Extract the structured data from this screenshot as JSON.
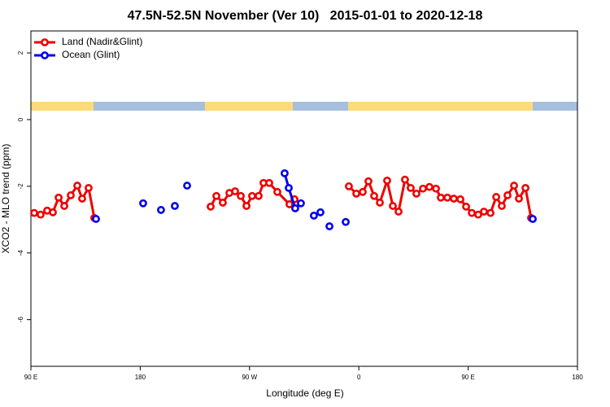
{
  "chart_data": {
    "type": "line",
    "title": "47.5N-52.5N November (Ver 10)   2015-01-01 to 2020-12-18",
    "xlabel": "Longitude (deg E)",
    "ylabel": "XCO2 - MLO trend (ppm)",
    "xlim": [
      90,
      540
    ],
    "ylim": [
      -7.4,
      2.66
    ],
    "xticks": [
      {
        "value": 90,
        "label": "90 E"
      },
      {
        "value": 180,
        "label": "180"
      },
      {
        "value": 270,
        "label": "90 W"
      },
      {
        "value": 360,
        "label": "0"
      },
      {
        "value": 450,
        "label": "90 E"
      },
      {
        "value": 540,
        "label": "180"
      }
    ],
    "yticks": [
      2,
      0,
      -2,
      -4,
      -6
    ],
    "legend": "top-left",
    "series": [
      {
        "name": "Land (Nadir&Glint)",
        "color": "#ee0000",
        "x": [
          92.7,
          98.0,
          103.4,
          108.1,
          112.8,
          117.5,
          122.8,
          128.2,
          132.2,
          137.5,
          142.2,
          null,
          238.0,
          242.7,
          248.0,
          253.4,
          258.1,
          262.8,
          267.5,
          272.1,
          277.5,
          281.5,
          286.2,
          292.9,
          302.9,
          307.0,
          null,
          351.8,
          357.9,
          363.2,
          367.9,
          372.6,
          377.3,
          383.3,
          388.0,
          392.7,
          398.0,
          402.7,
          407.4,
          412.8,
          418.1,
          423.5,
          427.5,
          432.9,
          438.2,
          443.6,
          448.3,
          453.0,
          458.3,
          463.0,
          468.4,
          473.1,
          477.7,
          482.4,
          487.8,
          491.8,
          497.2,
          501.8
        ],
        "values": [
          -2.8,
          -2.85,
          -2.73,
          -2.78,
          -2.34,
          -2.59,
          -2.27,
          -1.98,
          -2.37,
          -2.05,
          -2.95,
          null,
          -2.61,
          -2.29,
          -2.49,
          -2.2,
          -2.15,
          -2.29,
          -2.59,
          -2.29,
          -2.29,
          -1.9,
          -1.9,
          -2.17,
          -2.54,
          -2.39,
          null,
          -2.0,
          -2.22,
          -2.17,
          -1.85,
          -2.29,
          -2.49,
          -1.83,
          -2.59,
          -2.76,
          -1.8,
          -2.05,
          -2.22,
          -2.07,
          -2.02,
          -2.07,
          -2.34,
          -2.34,
          -2.37,
          -2.39,
          -2.61,
          -2.8,
          -2.85,
          -2.76,
          -2.8,
          -2.32,
          -2.59,
          -2.27,
          -1.98,
          -2.37,
          -2.05,
          -2.95
        ]
      },
      {
        "name": "Ocean (Glint)",
        "color": "#0000ee",
        "x": [
          143.6,
          null,
          182.4,
          null,
          197.1,
          null,
          208.5,
          null,
          218.6,
          null,
          298.9,
          302.3,
          307.6,
          null,
          312.3,
          null,
          323.0,
          null,
          328.4,
          null,
          335.8,
          null,
          349.2,
          null,
          503.2
        ],
        "values": [
          -2.98,
          null,
          -2.51,
          null,
          -2.71,
          null,
          -2.59,
          null,
          -1.98,
          null,
          -1.61,
          -2.05,
          -2.66,
          null,
          -2.51,
          null,
          -2.88,
          null,
          -2.78,
          null,
          -3.2,
          null,
          -3.07,
          null,
          -2.98
        ]
      }
    ]
  }
}
